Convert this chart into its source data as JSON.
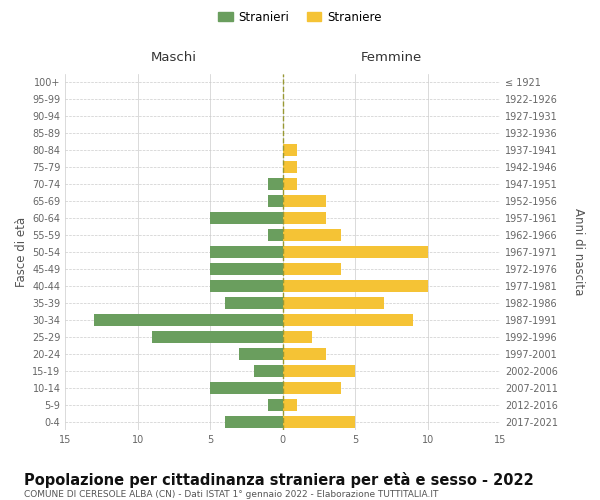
{
  "age_groups": [
    "0-4",
    "5-9",
    "10-14",
    "15-19",
    "20-24",
    "25-29",
    "30-34",
    "35-39",
    "40-44",
    "45-49",
    "50-54",
    "55-59",
    "60-64",
    "65-69",
    "70-74",
    "75-79",
    "80-84",
    "85-89",
    "90-94",
    "95-99",
    "100+"
  ],
  "birth_years": [
    "2017-2021",
    "2012-2016",
    "2007-2011",
    "2002-2006",
    "1997-2001",
    "1992-1996",
    "1987-1991",
    "1982-1986",
    "1977-1981",
    "1972-1976",
    "1967-1971",
    "1962-1966",
    "1957-1961",
    "1952-1956",
    "1947-1951",
    "1942-1946",
    "1937-1941",
    "1932-1936",
    "1927-1931",
    "1922-1926",
    "≤ 1921"
  ],
  "maschi": [
    4,
    1,
    5,
    2,
    3,
    9,
    13,
    4,
    5,
    5,
    5,
    1,
    5,
    1,
    1,
    0,
    0,
    0,
    0,
    0,
    0
  ],
  "femmine": [
    5,
    1,
    4,
    5,
    3,
    2,
    9,
    7,
    10,
    4,
    10,
    4,
    3,
    3,
    1,
    1,
    1,
    0,
    0,
    0,
    0
  ],
  "color_maschi": "#6a9e5e",
  "color_femmine": "#f5c335",
  "title": "Popolazione per cittadinanza straniera per età e sesso - 2022",
  "subtitle": "COMUNE DI CERESOLE ALBA (CN) - Dati ISTAT 1° gennaio 2022 - Elaborazione TUTTITALIA.IT",
  "xlabel_maschi": "Maschi",
  "xlabel_femmine": "Femmine",
  "ylabel_left": "Fasce di età",
  "ylabel_right": "Anni di nascita",
  "legend_maschi": "Stranieri",
  "legend_femmine": "Straniere",
  "xlim": 15,
  "bg_color": "#ffffff",
  "grid_color": "#cccccc",
  "dashed_line_color": "#999933",
  "title_fontsize": 10.5,
  "subtitle_fontsize": 6.5,
  "axis_label_fontsize": 8.5,
  "tick_fontsize": 7.0
}
